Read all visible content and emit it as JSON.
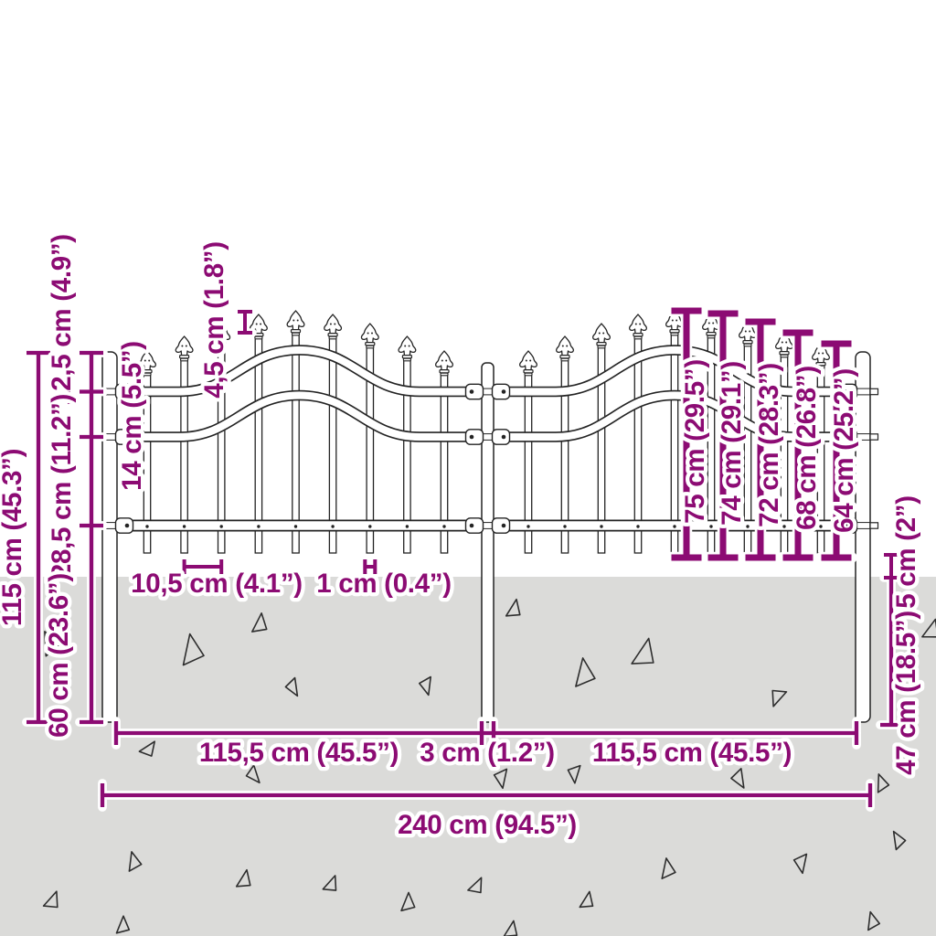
{
  "colors": {
    "accent": "#8C0B73",
    "ground": "#DBDBD9",
    "line": "#232323",
    "background": "#FFFFFF"
  },
  "dims": {
    "total_height": "115 cm (45.3”)",
    "post_top_offset": "12,5 cm (4.9”)",
    "rail_gap": "14 cm (5.5”)",
    "lower_section": "28,5 cm (11.2”)",
    "buried_left": "60 cm (23.6”)",
    "spear_height": "4,5 cm (1.8”)",
    "picket_spacing": "10,5 cm (4.1”)",
    "picket_diameter": "1 cm (0.4”)",
    "picket_75": "75 cm (29.5”)",
    "picket_74": "74 cm (29.1”)",
    "picket_72": "72 cm (28.3”)",
    "picket_68": "68 cm (26.8”)",
    "picket_64": "64 cm (25.2”)",
    "ground_clearance": "5 cm (2”)",
    "buried_right": "47 cm (18.5”)",
    "span_left": "115,5 cm (45.5”)",
    "center_post_width": "3 cm (1.2”)",
    "span_right": "115,5 cm (45.5”)",
    "total_width": "240 cm (94.5”)"
  }
}
